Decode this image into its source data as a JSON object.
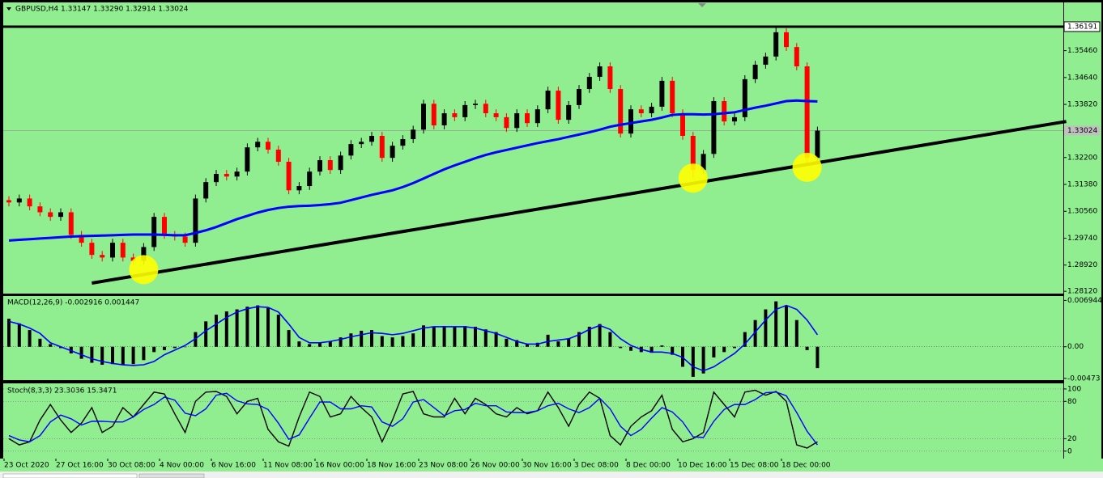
{
  "chart_data": [
    {
      "type": "candlestick",
      "title": "GBPUSD,H4  1.33147 1.33290 1.32914 1.33024",
      "up_color": "#000000",
      "down_color": "#ff0000",
      "open": [
        1.309,
        1.3083,
        1.3095,
        1.3071,
        1.3053,
        1.3039,
        1.3053,
        1.2984,
        1.296,
        1.2923,
        1.2915,
        1.296,
        1.2915,
        1.2905,
        1.2947,
        1.3039,
        1.2984,
        1.2979,
        1.296,
        1.3095,
        1.3145,
        1.317,
        1.3162,
        1.3177,
        1.3251,
        1.3268,
        1.3244,
        1.3207,
        1.312,
        1.3133,
        1.3177,
        1.3212,
        1.3182,
        1.3226,
        1.3261,
        1.3268,
        1.3286,
        1.3219,
        1.3256,
        1.3276,
        1.3305,
        1.3384,
        1.3318,
        1.3355,
        1.3343,
        1.338,
        1.3384,
        1.3355,
        1.3343,
        1.331,
        1.3355,
        1.3325,
        1.3367,
        1.3424,
        1.3335,
        1.338,
        1.3429,
        1.3466,
        1.3498,
        1.3429,
        1.3293,
        1.3367,
        1.3355,
        1.3375,
        1.3454,
        1.3355,
        1.3286,
        1.3182,
        1.3231,
        1.3392,
        1.333,
        1.3343,
        1.3459,
        1.3503,
        1.3528,
        1.3602,
        1.3557,
        1.3498,
        1.3219
      ],
      "high": [
        1.3102,
        1.3107,
        1.3107,
        1.3083,
        1.3065,
        1.3065,
        1.3065,
        1.2996,
        1.2972,
        1.2935,
        1.2972,
        1.2972,
        1.2927,
        1.2959,
        1.3051,
        1.3051,
        1.2996,
        1.2991,
        1.3107,
        1.3157,
        1.3182,
        1.3182,
        1.3189,
        1.3263,
        1.328,
        1.328,
        1.3256,
        1.3219,
        1.3145,
        1.3189,
        1.3224,
        1.3224,
        1.3238,
        1.3273,
        1.328,
        1.3298,
        1.3298,
        1.3268,
        1.3288,
        1.3317,
        1.3396,
        1.3396,
        1.3367,
        1.3367,
        1.3392,
        1.3396,
        1.3396,
        1.3367,
        1.3355,
        1.3367,
        1.3367,
        1.3379,
        1.3436,
        1.3436,
        1.3392,
        1.3441,
        1.3478,
        1.351,
        1.351,
        1.3441,
        1.3379,
        1.3379,
        1.3387,
        1.3466,
        1.3466,
        1.3367,
        1.3298,
        1.3243,
        1.3404,
        1.3404,
        1.3355,
        1.3471,
        1.3515,
        1.354,
        1.3619,
        1.3614,
        1.3569,
        1.351,
        1.3314
      ],
      "low": [
        1.3071,
        1.3071,
        1.3059,
        1.3041,
        1.3027,
        1.3027,
        1.2972,
        1.2948,
        1.2911,
        1.2903,
        1.2903,
        1.2903,
        1.2893,
        1.2893,
        1.2935,
        1.2972,
        1.2967,
        1.2948,
        1.2948,
        1.3083,
        1.3133,
        1.315,
        1.315,
        1.3165,
        1.3239,
        1.3232,
        1.3195,
        1.3108,
        1.3108,
        1.3121,
        1.3165,
        1.317,
        1.317,
        1.3214,
        1.3249,
        1.3256,
        1.3207,
        1.3207,
        1.3244,
        1.3264,
        1.3293,
        1.3306,
        1.3306,
        1.3331,
        1.3331,
        1.3368,
        1.3343,
        1.3331,
        1.3298,
        1.3298,
        1.3313,
        1.3313,
        1.3355,
        1.3323,
        1.3323,
        1.3368,
        1.3417,
        1.3454,
        1.3417,
        1.3281,
        1.3281,
        1.3343,
        1.3343,
        1.3363,
        1.3343,
        1.3274,
        1.3158,
        1.317,
        1.3219,
        1.3318,
        1.3318,
        1.3331,
        1.3447,
        1.3491,
        1.3516,
        1.3545,
        1.3486,
        1.32,
        1.3207
      ],
      "close": [
        1.3083,
        1.3095,
        1.3071,
        1.3053,
        1.3039,
        1.3053,
        1.2984,
        1.296,
        1.2923,
        1.2915,
        1.296,
        1.2915,
        1.2905,
        1.2947,
        1.3039,
        1.2984,
        1.2979,
        1.296,
        1.3095,
        1.3145,
        1.317,
        1.3162,
        1.3177,
        1.3251,
        1.3268,
        1.3244,
        1.3207,
        1.312,
        1.3133,
        1.3177,
        1.3212,
        1.3182,
        1.3226,
        1.3261,
        1.3268,
        1.3286,
        1.3219,
        1.3256,
        1.3276,
        1.3305,
        1.3384,
        1.3318,
        1.3355,
        1.3343,
        1.338,
        1.3384,
        1.3355,
        1.3343,
        1.331,
        1.3355,
        1.3325,
        1.3367,
        1.3424,
        1.3335,
        1.338,
        1.3429,
        1.3466,
        1.3498,
        1.3429,
        1.3293,
        1.3367,
        1.3355,
        1.3375,
        1.3454,
        1.3355,
        1.3286,
        1.3182,
        1.3231,
        1.3392,
        1.333,
        1.3343,
        1.3459,
        1.3503,
        1.3528,
        1.3602,
        1.3557,
        1.3498,
        1.3219,
        1.3302
      ],
      "ma": {
        "color": "#0000ff",
        "values": [
          1.2967,
          1.2969,
          1.2971,
          1.2973,
          1.2975,
          1.2977,
          1.2979,
          1.298,
          1.2981,
          1.2982,
          1.2983,
          1.2984,
          1.2985,
          1.2985,
          1.2985,
          1.2984,
          1.2983,
          1.2983,
          1.299,
          1.2998,
          1.3008,
          1.302,
          1.3032,
          1.3042,
          1.3052,
          1.306,
          1.3066,
          1.307,
          1.3072,
          1.3073,
          1.3075,
          1.3078,
          1.3082,
          1.309,
          1.3098,
          1.3106,
          1.3113,
          1.312,
          1.313,
          1.3142,
          1.3156,
          1.317,
          1.3184,
          1.3196,
          1.3207,
          1.3218,
          1.3228,
          1.3236,
          1.3243,
          1.325,
          1.3257,
          1.3264,
          1.327,
          1.3276,
          1.3283,
          1.329,
          1.3297,
          1.3305,
          1.3314,
          1.332,
          1.3325,
          1.333,
          1.3335,
          1.3342,
          1.335,
          1.3352,
          1.3352,
          1.3351,
          1.3352,
          1.3355,
          1.3358,
          1.3365,
          1.3372,
          1.3378,
          1.3385,
          1.3392,
          1.3394,
          1.3392,
          1.3391
        ]
      },
      "resistance": {
        "value": 1.36191,
        "label": "1.36191"
      },
      "current_price": {
        "value": 1.33024,
        "label": "1.33024"
      },
      "trendline": {
        "from": [
          8,
          1.2837
        ],
        "to": [
          102,
          1.333
        ]
      },
      "highlights": [
        [
          13,
          1.2878
        ],
        [
          66,
          1.3157
        ],
        [
          77,
          1.319
        ]
      ],
      "highlight_color": "#ffff00",
      "ylim": [
        1.2805,
        1.3693
      ],
      "yticks": [
        {
          "value": 1.3546,
          "label": "1.35460"
        },
        {
          "value": 1.3464,
          "label": "1.34640"
        },
        {
          "value": 1.3382,
          "label": "1.33820"
        },
        {
          "value": 1.322,
          "label": "1.32200"
        },
        {
          "value": 1.3138,
          "label": "1.31380"
        },
        {
          "value": 1.3056,
          "label": "1.30560"
        },
        {
          "value": 1.2974,
          "label": "1.29740"
        },
        {
          "value": 1.2892,
          "label": "1.28920"
        },
        {
          "value": 1.2812,
          "label": "1.28120"
        }
      ]
    },
    {
      "type": "macd",
      "title": "MACD(12,26,9) -0.002916 0.001447",
      "histogram": [
        0.0042,
        0.0035,
        0.0025,
        0.0012,
        0.0004,
        -0.0002,
        -0.001,
        -0.0018,
        -0.0024,
        -0.0027,
        -0.0026,
        -0.0027,
        -0.0026,
        -0.002,
        -0.0008,
        -0.0005,
        -0.0002,
        0.0,
        0.0022,
        0.0038,
        0.0048,
        0.0053,
        0.0056,
        0.006,
        0.0062,
        0.0058,
        0.0048,
        0.0025,
        0.0008,
        0.0004,
        0.0006,
        0.0008,
        0.0014,
        0.002,
        0.0024,
        0.0025,
        0.0016,
        0.0014,
        0.0016,
        0.002,
        0.0032,
        0.003,
        0.0031,
        0.003,
        0.0031,
        0.003,
        0.0026,
        0.0022,
        0.0012,
        0.001,
        0.0004,
        0.0006,
        0.0018,
        0.0008,
        0.0012,
        0.0022,
        0.003,
        0.0034,
        0.0022,
        -0.0002,
        -0.0006,
        -0.0008,
        -0.0009,
        0.0002,
        -0.0012,
        -0.003,
        -0.0045,
        -0.004,
        -0.0016,
        -0.0008,
        -0.0002,
        0.0022,
        0.004,
        0.0056,
        0.0068,
        0.0062,
        0.004,
        -0.0005,
        -0.0032
      ],
      "signal": [
        0.0038,
        0.0034,
        0.0028,
        0.002,
        0.0006,
        0.0,
        -0.0006,
        -0.0012,
        -0.0018,
        -0.0022,
        -0.0025,
        -0.0027,
        -0.0028,
        -0.0027,
        -0.0022,
        -0.0012,
        -0.0005,
        0.0002,
        0.0012,
        0.0024,
        0.0034,
        0.0044,
        0.0052,
        0.0057,
        0.006,
        0.0059,
        0.0052,
        0.0034,
        0.0014,
        0.0006,
        0.0006,
        0.0008,
        0.0011,
        0.0015,
        0.0018,
        0.0021,
        0.002,
        0.0018,
        0.002,
        0.0024,
        0.0028,
        0.003,
        0.003,
        0.003,
        0.003,
        0.0028,
        0.0024,
        0.002,
        0.0014,
        0.0008,
        0.0004,
        0.0004,
        0.0008,
        0.001,
        0.0012,
        0.0018,
        0.0026,
        0.0032,
        0.0026,
        0.0012,
        0.0002,
        -0.0004,
        -0.0008,
        -0.0008,
        -0.001,
        -0.0016,
        -0.003,
        -0.0036,
        -0.003,
        -0.002,
        -0.001,
        0.0004,
        0.0022,
        0.004,
        0.0056,
        0.0062,
        0.0056,
        0.004,
        0.0018
      ],
      "histogram_color": "#000000",
      "signal_color": "#0000ff",
      "ylim": [
        -0.005,
        0.0076
      ],
      "yticks": [
        0.006944,
        {
          "value": 0,
          "label": "0.00"
        },
        -0.00473
      ]
    },
    {
      "type": "stochastic",
      "title": "Stoch(8,3,3) 23.3036 15.3471",
      "categories": [
        "23 Oct 2020",
        null,
        null,
        null,
        null,
        "27 Oct 16:00",
        null,
        null,
        null,
        null,
        "30 Oct 08:00",
        null,
        null,
        null,
        null,
        "4 Nov 00:00",
        null,
        null,
        null,
        null,
        "6 Nov 16:00",
        null,
        null,
        null,
        null,
        "11 Nov 08:00",
        null,
        null,
        null,
        null,
        "16 Nov 00:00",
        null,
        null,
        null,
        null,
        "18 Nov 16:00",
        null,
        null,
        null,
        null,
        "23 Nov 08:00",
        null,
        null,
        null,
        null,
        "26 Nov 00:00",
        null,
        null,
        null,
        null,
        "30 Nov 16:00",
        null,
        null,
        null,
        null,
        "3 Dec 08:00",
        null,
        null,
        null,
        null,
        "8 Dec 00:00",
        null,
        null,
        null,
        null,
        "10 Dec 16:00",
        null,
        null,
        null,
        null,
        "15 Dec 08:00",
        null,
        null,
        null,
        null,
        "18 Dec 00:00",
        null,
        null,
        null
      ],
      "main": [
        20,
        10,
        15,
        50,
        75,
        50,
        30,
        45,
        70,
        30,
        40,
        70,
        55,
        75,
        95,
        92,
        60,
        30,
        80,
        95,
        96,
        88,
        60,
        80,
        85,
        35,
        15,
        8,
        55,
        95,
        88,
        55,
        60,
        88,
        70,
        55,
        15,
        50,
        92,
        96,
        60,
        55,
        55,
        85,
        60,
        85,
        75,
        60,
        55,
        70,
        60,
        65,
        95,
        70,
        40,
        75,
        95,
        85,
        25,
        10,
        40,
        55,
        65,
        90,
        35,
        15,
        20,
        30,
        95,
        75,
        55,
        95,
        98,
        90,
        96,
        80,
        10,
        5,
        15
      ],
      "signal": [
        25,
        18,
        15,
        25,
        47,
        58,
        52,
        42,
        48,
        48,
        47,
        47,
        55,
        67,
        75,
        87,
        82,
        61,
        57,
        68,
        90,
        93,
        81,
        76,
        75,
        67,
        45,
        19,
        26,
        53,
        79,
        79,
        68,
        68,
        73,
        71,
        47,
        40,
        52,
        79,
        83,
        70,
        57,
        65,
        67,
        77,
        73,
        73,
        63,
        62,
        62,
        65,
        73,
        77,
        68,
        62,
        70,
        85,
        68,
        40,
        25,
        35,
        53,
        70,
        63,
        47,
        23,
        22,
        48,
        67,
        75,
        75,
        83,
        94,
        95,
        89,
        62,
        32,
        10
      ],
      "main_color": "#000000",
      "signal_color": "#0000ff",
      "ylim": [
        -12,
        109
      ],
      "yticks": [
        100,
        80,
        20,
        0
      ]
    }
  ]
}
